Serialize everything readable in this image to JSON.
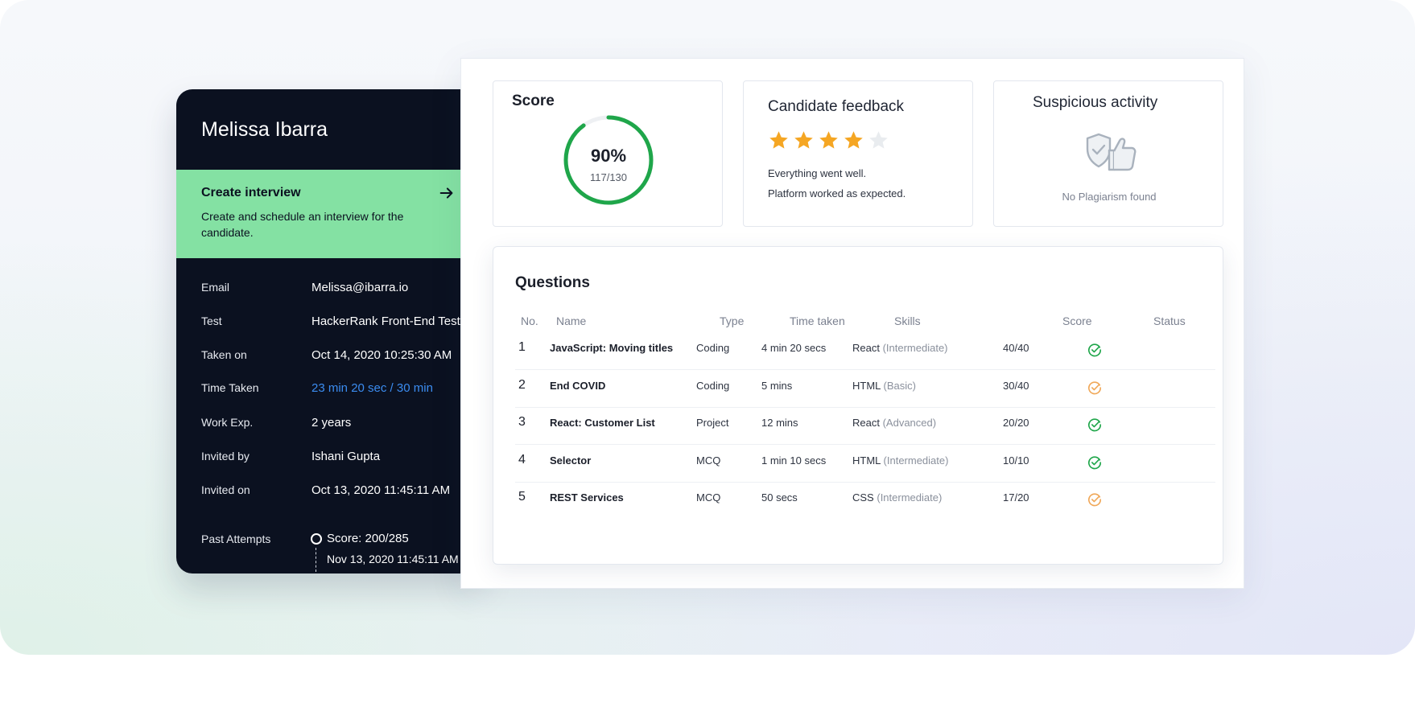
{
  "candidate": {
    "name": "Melissa Ibarra",
    "create_interview": {
      "title": "Create interview",
      "description": "Create and schedule an interview for the candidate."
    },
    "details": [
      {
        "label": "Email",
        "value": "Melissa@ibarra.io"
      },
      {
        "label": "Test",
        "value": "HackerRank Front-End Test"
      },
      {
        "label": "Taken on",
        "value": "Oct 14, 2020  10:25:30 AM"
      },
      {
        "label": "Time Taken",
        "value": "23 min 20 sec / 30 min"
      },
      {
        "label": "Work Exp.",
        "value": "2 years"
      },
      {
        "label": "Invited by",
        "value": "Ishani Gupta"
      },
      {
        "label": "Invited on",
        "value": "Oct 13, 2020  11:45:11 AM"
      },
      {
        "label": "Past Attempts",
        "value": ""
      }
    ],
    "past_attempt": {
      "score": "Score: 200/285",
      "date": "Nov 13, 2020  11:45:11 AM"
    }
  },
  "score": {
    "title": "Score",
    "percent": "90%",
    "fraction": "117/130",
    "progress": 0.9
  },
  "feedback": {
    "title": "Candidate feedback",
    "rating": 4,
    "max_rating": 5,
    "line1": "Everything went well.",
    "line2": "Platform worked as expected."
  },
  "suspicious": {
    "title": "Suspicious activity",
    "text": "No Plagiarism found",
    "icon": "shield-thumbs-up-icon"
  },
  "questions": {
    "title": "Questions",
    "headers": {
      "no": "No.",
      "name": "Name",
      "type": "Type",
      "time": "Time taken",
      "skills": "Skills",
      "score": "Score",
      "status": "Status"
    },
    "rows": [
      {
        "no": "1",
        "name": "JavaScript: Moving titles",
        "type": "Coding",
        "time": "4 min 20 secs",
        "skill": "React",
        "level": "(Intermediate)",
        "score": "40/40",
        "status": "complete"
      },
      {
        "no": "2",
        "name": "End COVID",
        "type": "Coding",
        "time": "5 mins",
        "skill": "HTML",
        "level": "(Basic)",
        "score": "30/40",
        "status": "partial"
      },
      {
        "no": "3",
        "name": "React: Customer List",
        "type": "Project",
        "time": "12 mins",
        "skill": "React",
        "level": "(Advanced)",
        "score": "20/20",
        "status": "complete"
      },
      {
        "no": "4",
        "name": "Selector",
        "type": "MCQ",
        "time": "1 min 10 secs",
        "skill": "HTML",
        "level": "(Intermediate)",
        "score": "10/10",
        "status": "complete"
      },
      {
        "no": "5",
        "name": "REST Services",
        "type": "MCQ",
        "time": "50 secs",
        "skill": "CSS",
        "level": "(Intermediate)",
        "score": "17/20",
        "status": "partial"
      }
    ]
  },
  "colors": {
    "dark": "#0b1120",
    "accent_green": "#84e1a3",
    "ring_green": "#1fa64a",
    "star": "#f5a623",
    "link_blue": "#3b8cf0",
    "status_complete": "#1fa64a",
    "status_partial": "#f0a859"
  }
}
